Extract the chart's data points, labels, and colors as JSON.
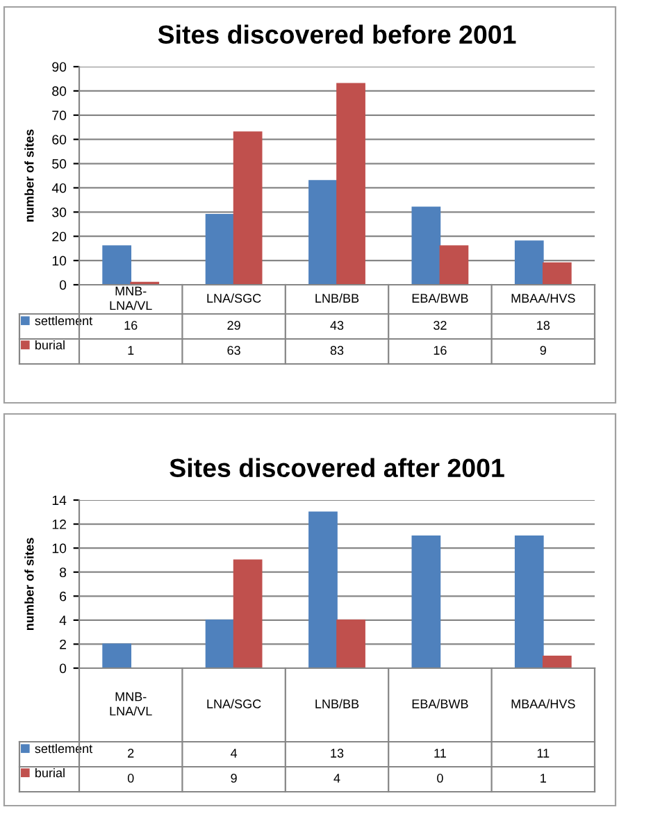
{
  "chart_data": [
    {
      "type": "bar",
      "title": "Sites discovered before 2001",
      "ylabel": "number of sites",
      "categories": [
        "MNB-\nLNA/VL",
        "LNA/SGC",
        "LNB/BB",
        "EBA/BWB",
        "MBAA/HVS"
      ],
      "series": [
        {
          "name": "settlement",
          "color": "#4f81bd",
          "values": [
            16,
            29,
            43,
            32,
            18
          ]
        },
        {
          "name": "burial",
          "color": "#c0504d",
          "values": [
            1,
            63,
            83,
            16,
            9
          ]
        }
      ],
      "ylim": [
        0,
        90
      ],
      "yticks": [
        0,
        10,
        20,
        30,
        40,
        50,
        60,
        70,
        80,
        90
      ],
      "grid": "y",
      "data_labels": true,
      "legend": "bottom left"
    },
    {
      "type": "bar",
      "title": "Sites discovered after 2001",
      "ylabel": "number of sites",
      "categories": [
        "MNB-\nLNA/VL",
        "LNA/SGC",
        "LNB/BB",
        "EBA/BWB",
        "MBAA/HVS"
      ],
      "series": [
        {
          "name": "settlement",
          "color": "#4f81bd",
          "values": [
            2,
            4,
            13,
            11,
            11
          ]
        },
        {
          "name": "burial",
          "color": "#c0504d",
          "values": [
            0,
            9,
            4,
            0,
            1
          ]
        }
      ],
      "ylim": [
        0,
        14
      ],
      "yticks": [
        0,
        2,
        4,
        6,
        8,
        10,
        12,
        14
      ],
      "grid": "y",
      "data_labels": true,
      "legend": "bottom left"
    }
  ]
}
